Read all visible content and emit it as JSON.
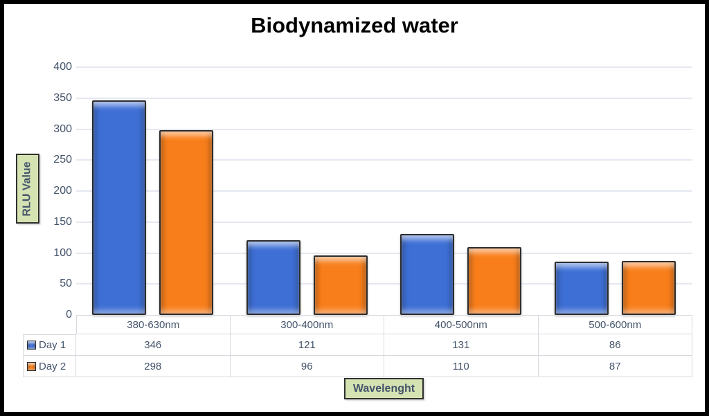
{
  "title": "Biodynamized water",
  "chart_data": {
    "type": "bar",
    "title": "Biodynamized water",
    "categories": [
      "380-630nm",
      "300-400nm",
      "400-500nm",
      "500-600nm"
    ],
    "series": [
      {
        "name": "Day 1",
        "values": [
          346,
          121,
          131,
          86
        ],
        "color": "#3e6fd5"
      },
      {
        "name": "Day 2",
        "values": [
          298,
          96,
          110,
          87
        ],
        "color": "#f87e1b"
      }
    ],
    "xlabel": "Wavelenght",
    "ylabel": "RLU Value",
    "ylim": [
      0,
      400
    ],
    "yticks": [
      0,
      50,
      100,
      150,
      200,
      250,
      300,
      350,
      400
    ],
    "grid": true,
    "legend_position": "data-table-left",
    "data_table": true
  },
  "colors": {
    "day1_fill": "#3e6fd5",
    "day2_fill": "#f87e1b",
    "axis_text": "#44546a",
    "gridline": "#e5e8f0",
    "table_border": "#d5d8dd",
    "label_box_bg": "#d5e3b3",
    "label_box_border": "#2f2f2f",
    "frame": "#000000",
    "title_text": "#000000"
  }
}
